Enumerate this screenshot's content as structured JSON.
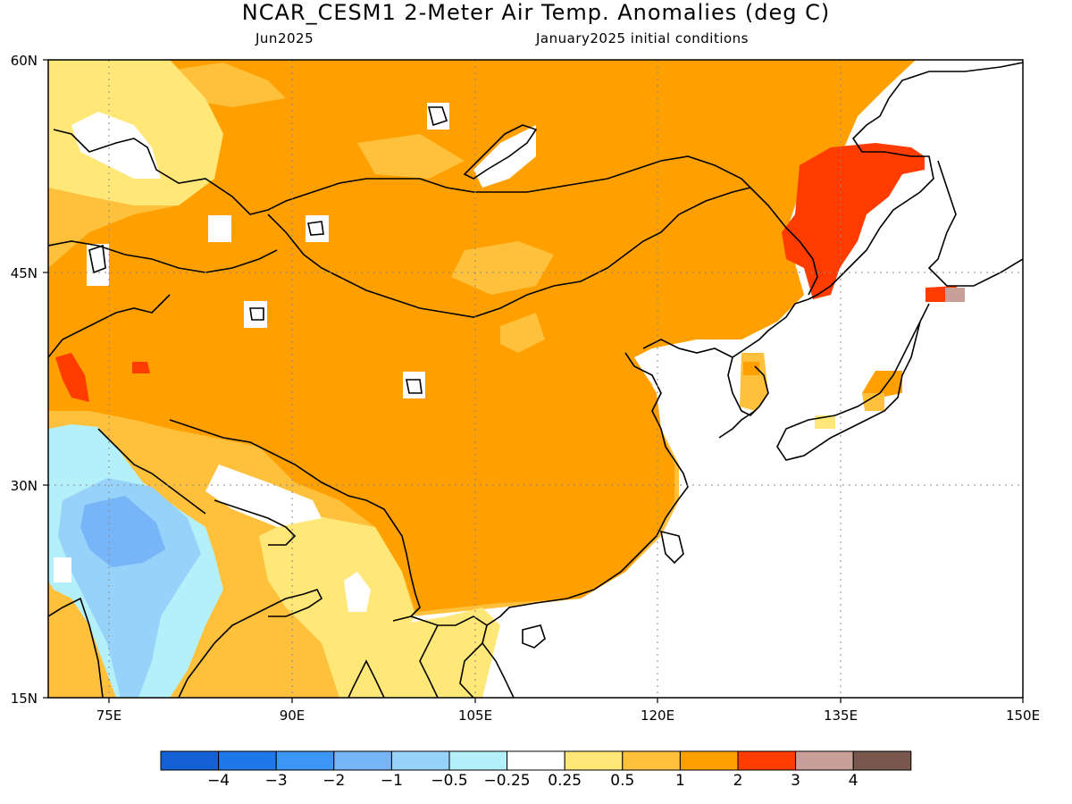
{
  "title": "NCAR_CESM1 2-Meter Air Temp. Anomalies (deg C)",
  "subtitle_left": "Jun2025",
  "subtitle_right": "January2025 initial conditions",
  "lat_labels": [
    "60N",
    "45N",
    "30N",
    "15N"
  ],
  "lon_labels": [
    "75E",
    "90E",
    "105E",
    "120E",
    "135E",
    "150E"
  ],
  "colorbar": {
    "colors": [
      "#1560d4",
      "#1e78ea",
      "#3c96f5",
      "#78b4f8",
      "#96d2fa",
      "#b4f0fa",
      "#ffffff",
      "#ffe878",
      "#ffc03c",
      "#ffa000",
      "#ff3c00",
      "#c8a098",
      "#7a574c"
    ],
    "labels": [
      "−4",
      "−3",
      "−2",
      "−1",
      "−0.5",
      "−0.25",
      "0.25",
      "0.5",
      "1",
      "2",
      "3",
      "4"
    ]
  },
  "palette": {
    "neg_strong": "#78b4f8",
    "neg_mid": "#96d2fa",
    "neg_weak": "#b4f0fa",
    "pos_weak": "#ffe878",
    "pos_mid": "#ffc03c",
    "pos_strong": "#ffa000",
    "pos_high": "#ff3c00",
    "pos_top": "#c8a098"
  }
}
